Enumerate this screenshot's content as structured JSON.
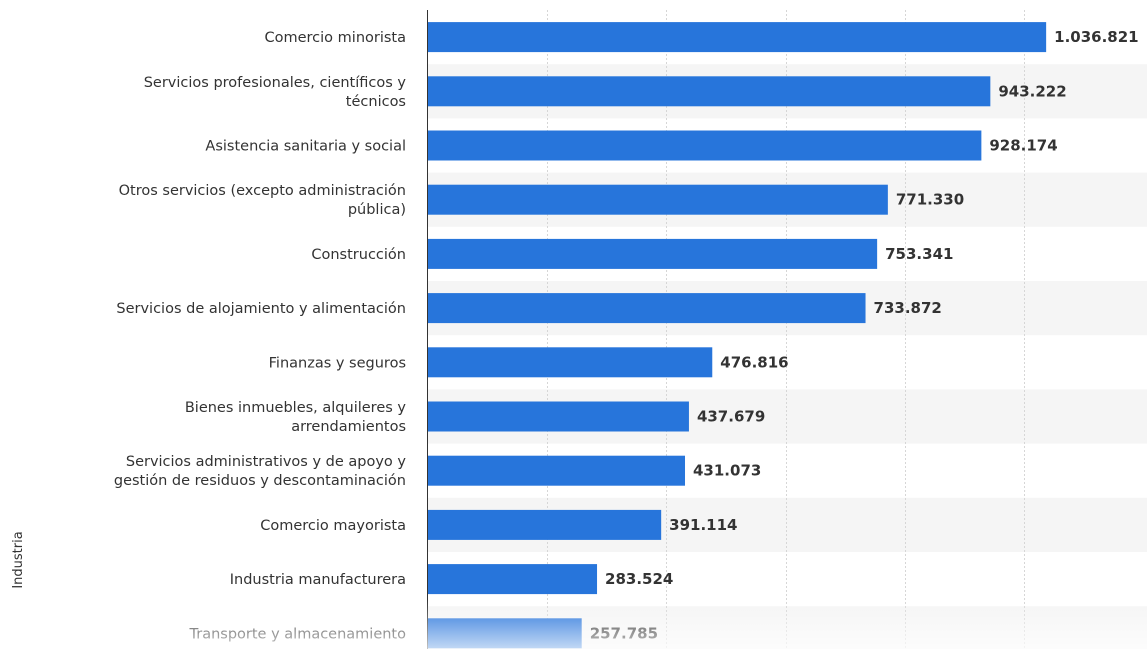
{
  "chart_data": {
    "type": "bar",
    "orientation": "horizontal",
    "ylabel": "Industria",
    "xlabel": "",
    "xlim": [
      0,
      1050000
    ],
    "grid": true,
    "colors": {
      "bar": "#2775db",
      "band": "#f5f5f5",
      "grid": "#d6d6d6",
      "text": "#333333"
    },
    "categories": [
      "Comercio minorista",
      "Servicios profesionales, científicos y técnicos",
      "Asistencia sanitaria y social",
      "Otros servicios (excepto administración pública)",
      "Construcción",
      "Servicios de alojamiento y alimentación",
      "Finanzas y seguros",
      "Bienes inmuebles, alquileres y arrendamientos",
      "Servicios administrativos y de apoyo y gestión de residuos y descontaminación",
      "Comercio mayorista",
      "Industria manufacturera",
      "Transporte y almacenamiento"
    ],
    "category_lines": [
      [
        "Comercio minorista"
      ],
      [
        "Servicios profesionales, científicos y",
        "técnicos"
      ],
      [
        "Asistencia sanitaria y social"
      ],
      [
        "Otros servicios (excepto administración",
        "pública)"
      ],
      [
        "Construcción"
      ],
      [
        "Servicios de alojamiento y alimentación"
      ],
      [
        "Finanzas y seguros"
      ],
      [
        "Bienes inmuebles, alquileres y",
        "arrendamientos"
      ],
      [
        "Servicios administrativos y de apoyo y",
        "gestión de residuos y descontaminación"
      ],
      [
        "Comercio mayorista"
      ],
      [
        "Industria manufacturera"
      ],
      [
        "Transporte y almacenamiento"
      ]
    ],
    "values": [
      1036821,
      943222,
      928174,
      771330,
      753341,
      733872,
      476816,
      437679,
      431073,
      391114,
      283524,
      257785
    ],
    "value_labels": [
      "1.036.821",
      "943.222",
      "928.174",
      "771.330",
      "753.341",
      "733.872",
      "476.816",
      "437.679",
      "431.073",
      "391.114",
      "283.524",
      "257.785"
    ]
  }
}
